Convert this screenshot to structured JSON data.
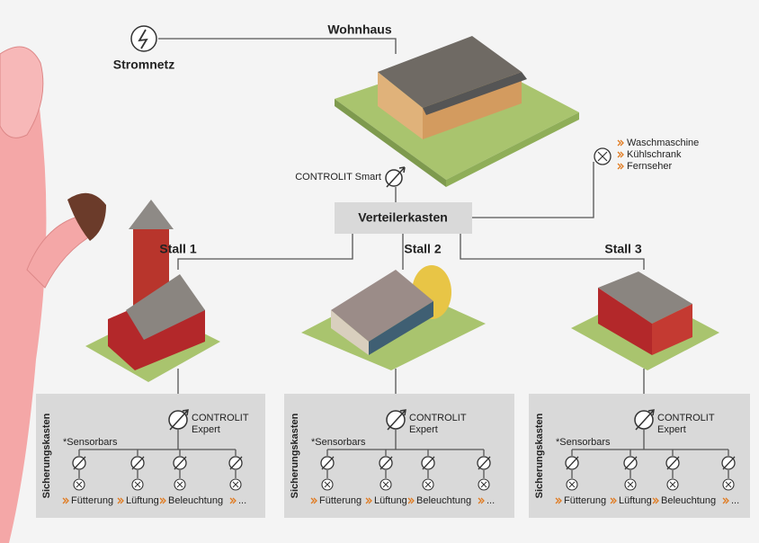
{
  "stromnetz": "Stromnetz",
  "wohnhaus": "Wohnhaus",
  "controlit_smart": "CONTROLIT Smart",
  "verteilerkasten": "Verteilerkasten",
  "devices": [
    "Waschmaschine",
    "Kühlschrank",
    "Fernseher"
  ],
  "stalls": [
    {
      "label": "Stall 1",
      "panel": {
        "title": "Sicherungskasten",
        "controller": [
          "CONTROLIT",
          "Expert"
        ],
        "sensorbars": "*Sensorbars",
        "outputs": [
          "Fütterung",
          "Lüftung",
          "Beleuchtung",
          "..."
        ]
      }
    },
    {
      "label": "Stall 2",
      "panel": {
        "title": "Sicherungskasten",
        "controller": [
          "CONTROLIT",
          "Expert"
        ],
        "sensorbars": "*Sensorbars",
        "outputs": [
          "Fütterung",
          "Lüftung",
          "Beleuchtung",
          "..."
        ]
      }
    },
    {
      "label": "Stall 3",
      "panel": {
        "title": "Sicherungskasten",
        "controller": [
          "CONTROLIT",
          "Expert"
        ],
        "sensorbars": "*Sensorbars",
        "outputs": [
          "Fütterung",
          "Lüftung",
          "Beleuchtung",
          "..."
        ]
      }
    }
  ]
}
